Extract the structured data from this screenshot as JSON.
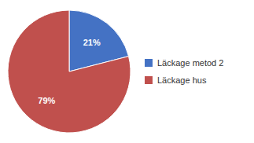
{
  "chart_data": {
    "type": "pie",
    "categories": [
      "Läckage metod 2",
      "Läckage hus"
    ],
    "values": [
      21,
      79
    ],
    "value_labels": [
      "21%",
      "79%"
    ],
    "colors": [
      "#4472c4",
      "#c0504d"
    ],
    "data_labels": true,
    "legend": "right"
  }
}
